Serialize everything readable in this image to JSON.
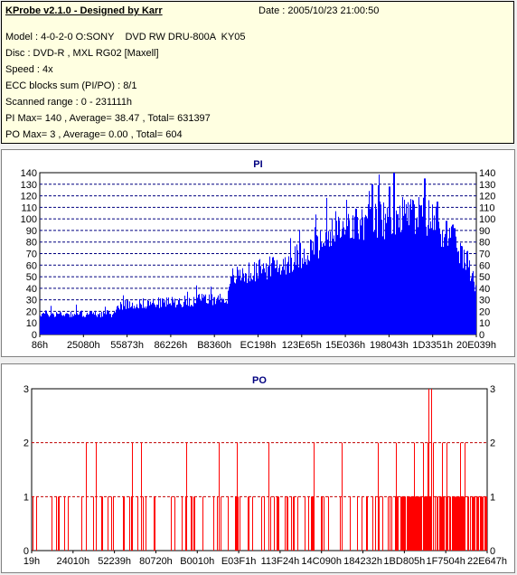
{
  "header": {
    "title": "KProbe v2.1.0 - Designed by Karr",
    "date": "Date : 2005/10/23 21:00:50"
  },
  "info": {
    "model": "Model : 4-0-2-0 O:SONY    DVD RW DRU-800A  KY05",
    "disc": "Disc : DVD-R , MXL RG02 [Maxell]",
    "speed": "Speed : 4x",
    "ecc": "ECC blocks sum (PI/PO) : 8/1",
    "range": "Scanned range : 0 - 231111h",
    "pi_summary": "PI Max= 140 , Average= 38.47 , Total= 631397",
    "po_summary": "PO Max= 3 , Average= 0.00 , Total= 604"
  },
  "colors": {
    "bar": "#0000ff",
    "po_bar": "#ff0000",
    "grid": "#000080",
    "po_grid": "#c00000"
  },
  "chart_data": [
    {
      "type": "bar",
      "title": "PI",
      "ylim": [
        0,
        140
      ],
      "yticks": [
        0,
        10,
        20,
        30,
        40,
        50,
        60,
        70,
        80,
        90,
        100,
        110,
        120,
        130,
        140
      ],
      "xtick_labels": [
        "86h",
        "25080h",
        "55873h",
        "86226h",
        "B8360h",
        "EC198h",
        "123E65h",
        "15E036h",
        "198043h",
        "1D3351h",
        "20E039h"
      ],
      "grid": true,
      "profile": [
        [
          0,
          18
        ],
        [
          0.17,
          18
        ],
        [
          0.18,
          26
        ],
        [
          0.3,
          28
        ],
        [
          0.43,
          32
        ],
        [
          0.44,
          50
        ],
        [
          0.55,
          60
        ],
        [
          0.65,
          80
        ],
        [
          0.72,
          95
        ],
        [
          0.8,
          100
        ],
        [
          0.86,
          105
        ],
        [
          0.9,
          100
        ],
        [
          0.95,
          80
        ],
        [
          0.98,
          60
        ],
        [
          1,
          40
        ]
      ],
      "peaks": [
        [
          0.76,
          130
        ],
        [
          0.81,
          140
        ],
        [
          0.88,
          135
        ],
        [
          0.91,
          115
        ],
        [
          0.95,
          92
        ],
        [
          0.8,
          128
        ]
      ]
    },
    {
      "type": "bar",
      "title": "PO",
      "ylim": [
        0,
        3
      ],
      "yticks": [
        0,
        1,
        2,
        3
      ],
      "xtick_labels": [
        "19h",
        "24010h",
        "52239h",
        "80720h",
        "B0010h",
        "E03F1h",
        "113F24h",
        "14C090h",
        "184232h",
        "1BD805h",
        "1F7504h",
        "22E647h"
      ],
      "grid": true,
      "twos": [
        0.12,
        0.14,
        0.22,
        0.24,
        0.34,
        0.41,
        0.45,
        0.52,
        0.62,
        0.68,
        0.76,
        0.8,
        0.84,
        0.86,
        0.87,
        0.88,
        0.9,
        0.91,
        0.94,
        0.95
      ],
      "threes": [
        0.871,
        0.877
      ]
    }
  ]
}
